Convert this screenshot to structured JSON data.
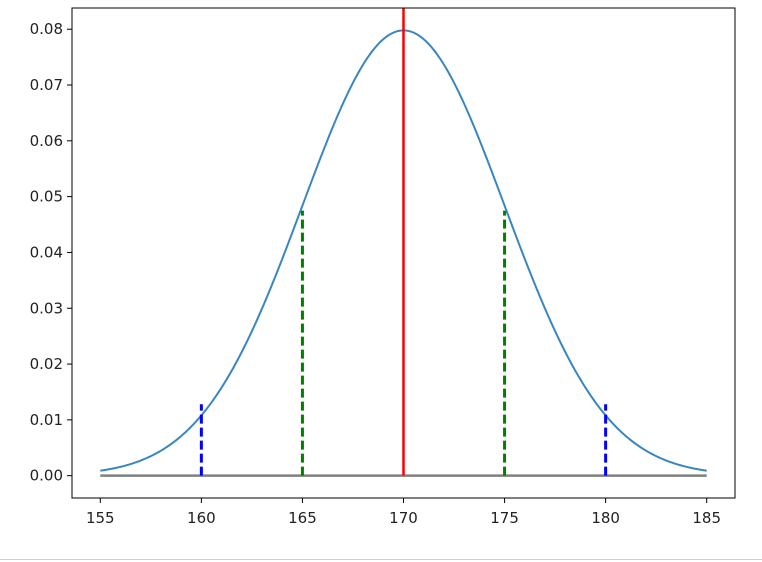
{
  "chart_data": {
    "type": "line",
    "title": "",
    "xlabel": "",
    "ylabel": "",
    "xlim": [
      153.6,
      186.4
    ],
    "ylim": [
      -0.004,
      0.0838
    ],
    "grid": false,
    "legend": "none",
    "x_ticks": [
      155,
      160,
      165,
      170,
      175,
      180,
      185
    ],
    "x_tick_labels": [
      "155",
      "160",
      "165",
      "170",
      "175",
      "180",
      "185"
    ],
    "y_ticks": [
      0.0,
      0.01,
      0.02,
      0.03,
      0.04,
      0.05,
      0.06,
      0.07,
      0.08
    ],
    "y_tick_labels": [
      "0.00",
      "0.01",
      "0.02",
      "0.03",
      "0.04",
      "0.05",
      "0.06",
      "0.07",
      "0.08"
    ],
    "curve": {
      "kind": "normal-pdf",
      "mean": 170,
      "std": 5,
      "x_range": [
        155,
        185
      ],
      "color": "#3a86c0"
    },
    "baseline": {
      "x": [
        155,
        185
      ],
      "y": 0,
      "color": "#808080"
    },
    "vlines": [
      {
        "x": 170,
        "ymax": 0.0838,
        "style": "solid",
        "color": "#ff0000"
      },
      {
        "x": 165,
        "ymax": 0.0475,
        "style": "dashed",
        "color": "#008000"
      },
      {
        "x": 175,
        "ymax": 0.0475,
        "style": "dashed",
        "color": "#008000"
      },
      {
        "x": 160,
        "ymax": 0.0128,
        "style": "dashed",
        "color": "#0000ff"
      },
      {
        "x": 180,
        "ymax": 0.0128,
        "style": "dashed",
        "color": "#0000ff"
      }
    ]
  }
}
